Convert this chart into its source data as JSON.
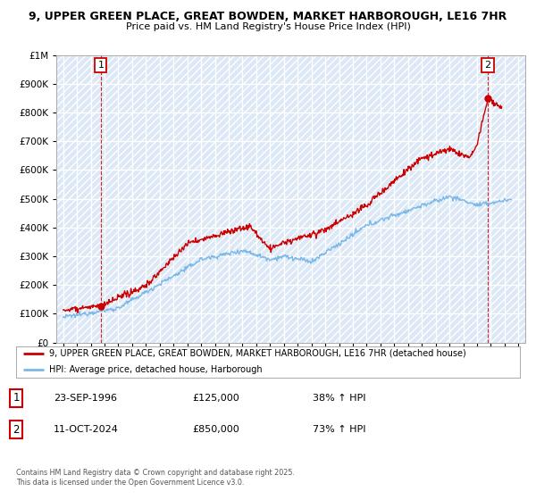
{
  "title_line1": "9, UPPER GREEN PLACE, GREAT BOWDEN, MARKET HARBOROUGH, LE16 7HR",
  "title_line2": "Price paid vs. HM Land Registry's House Price Index (HPI)",
  "sale1_date_num": 1996.73,
  "sale1_price": 125000,
  "sale2_date_num": 2024.78,
  "sale2_price": 850000,
  "legend_line1": "9, UPPER GREEN PLACE, GREAT BOWDEN, MARKET HARBOROUGH, LE16 7HR (detached house)",
  "legend_line2": "HPI: Average price, detached house, Harborough",
  "hpi_color": "#7ab8e8",
  "price_color": "#cc0000",
  "bg_color": "#dce8f5",
  "ylim_max": 1000000,
  "xlim_min": 1993.5,
  "xlim_max": 2027.5,
  "footer": "Contains HM Land Registry data © Crown copyright and database right 2025.\nThis data is licensed under the Open Government Licence v3.0."
}
